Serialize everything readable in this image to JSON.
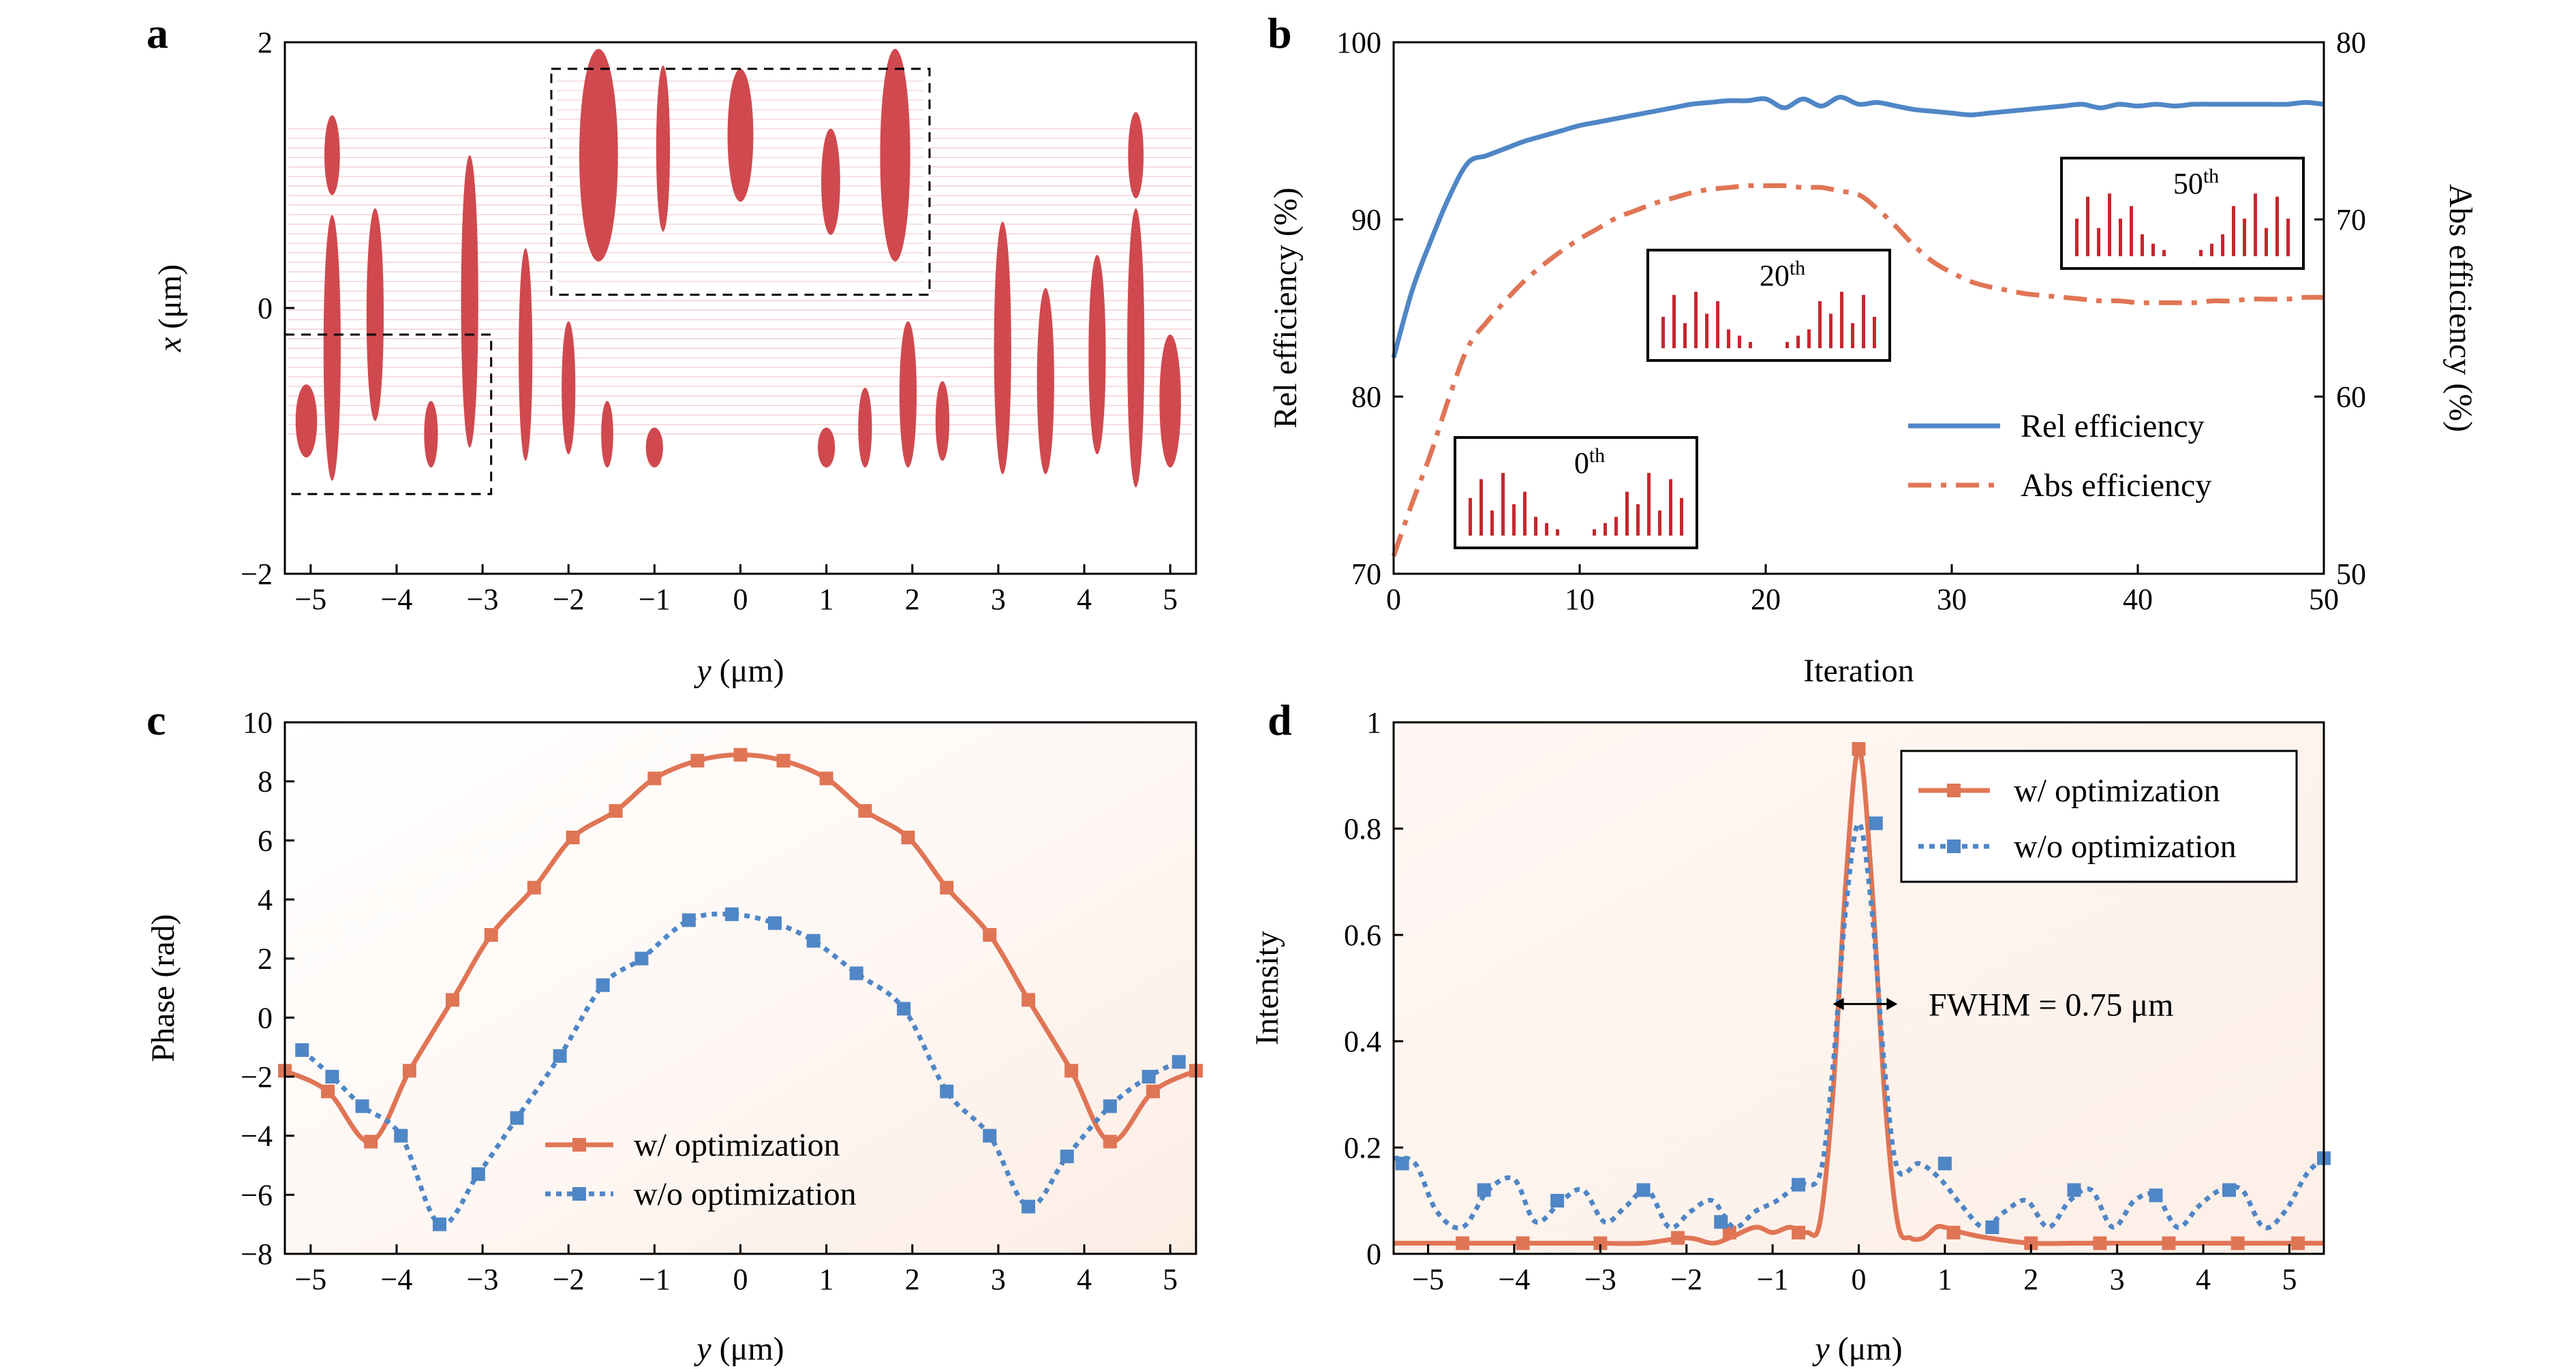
{
  "panels": {
    "a": "a",
    "b": "b",
    "c": "c",
    "d": "d"
  },
  "colors": {
    "orange": "#E07555",
    "blue": "#4F86C6",
    "shape": "#D0494F",
    "stripe": "#F2C4C4",
    "bg_peach": "#FDF3EE",
    "frame": "#000000"
  },
  "chart_data": [
    {
      "panel": "a",
      "type": "scatter",
      "title": "",
      "xlabel": "y (μm)",
      "ylabel": "x (μm)",
      "xlim": [
        -5.3,
        5.3
      ],
      "ylim": [
        -2,
        2
      ],
      "xticks": [
        "−5",
        "−4",
        "−3",
        "−2",
        "−1",
        "0",
        "1",
        "2",
        "3",
        "4",
        "5"
      ],
      "yticks": [
        "−2",
        "0",
        "2"
      ],
      "ellipses": [
        {
          "y": -4.75,
          "x": 1.15,
          "w": 0.18,
          "h": 0.6
        },
        {
          "y": -4.75,
          "x": -0.3,
          "w": 0.2,
          "h": 2.0
        },
        {
          "y": -5.05,
          "x": -0.85,
          "w": 0.25,
          "h": 0.55
        },
        {
          "y": -4.25,
          "x": -0.05,
          "w": 0.2,
          "h": 1.6
        },
        {
          "y": -3.6,
          "x": -0.95,
          "w": 0.16,
          "h": 0.5
        },
        {
          "y": -3.15,
          "x": 0.05,
          "w": 0.2,
          "h": 2.2
        },
        {
          "y": -2.5,
          "x": -0.35,
          "w": 0.16,
          "h": 1.6
        },
        {
          "y": -2.0,
          "x": -0.6,
          "w": 0.16,
          "h": 1.0
        },
        {
          "y": -1.55,
          "x": -0.95,
          "w": 0.14,
          "h": 0.5
        },
        {
          "y": -1.0,
          "x": -1.05,
          "w": 0.2,
          "h": 0.3
        },
        {
          "y": 1.0,
          "x": -1.05,
          "w": 0.2,
          "h": 0.3
        },
        {
          "y": 1.45,
          "x": -0.9,
          "w": 0.16,
          "h": 0.6
        },
        {
          "y": 1.95,
          "x": -0.65,
          "w": 0.2,
          "h": 1.1
        },
        {
          "y": 2.35,
          "x": -0.85,
          "w": 0.16,
          "h": 0.6
        },
        {
          "y": 3.05,
          "x": -0.3,
          "w": 0.2,
          "h": 1.9
        },
        {
          "y": 3.55,
          "x": -0.55,
          "w": 0.2,
          "h": 1.4
        },
        {
          "y": 4.15,
          "x": -0.35,
          "w": 0.2,
          "h": 1.5
        },
        {
          "y": 4.6,
          "x": -0.3,
          "w": 0.2,
          "h": 2.1
        },
        {
          "y": 4.6,
          "x": 1.15,
          "w": 0.18,
          "h": 0.65
        },
        {
          "y": 5.0,
          "x": -0.7,
          "w": 0.25,
          "h": 1.0
        }
      ],
      "inset_shapes": [
        {
          "y": -1.65,
          "x": 1.15,
          "w": 0.45,
          "h": 1.6
        },
        {
          "y": -0.9,
          "x": 1.2,
          "w": 0.16,
          "h": 1.25
        },
        {
          "y": 0.0,
          "x": 1.3,
          "w": 0.3,
          "h": 1.0
        },
        {
          "y": 1.05,
          "x": 0.95,
          "w": 0.22,
          "h": 0.8
        },
        {
          "y": 1.8,
          "x": 1.15,
          "w": 0.35,
          "h": 1.6
        }
      ],
      "boxes": [
        {
          "y0": -2.2,
          "y1": 2.2,
          "x0": 0.1,
          "x1": 1.8
        },
        {
          "y0": -5.3,
          "y1": -2.9,
          "x0": -1.4,
          "x1": -0.2
        }
      ]
    },
    {
      "panel": "b",
      "type": "line",
      "title": "",
      "xlabel": "Iteration",
      "ylabel": "Rel efficiency (%)",
      "ylabel_right": "Abs efficiency (%)",
      "xlim": [
        0,
        50
      ],
      "ylim": [
        70,
        100
      ],
      "ylim_right": [
        50,
        80
      ],
      "xticks": [
        "0",
        "10",
        "20",
        "30",
        "40",
        "50"
      ],
      "yticks": [
        "70",
        "80",
        "90",
        "100"
      ],
      "yticks_right": [
        "50",
        "60",
        "70",
        "80"
      ],
      "series": [
        {
          "name": "Rel efficiency",
          "axis": "left",
          "style": "solid",
          "x": [
            0,
            1,
            2,
            3,
            4,
            5,
            6,
            7,
            8,
            9,
            10,
            11,
            12,
            13,
            14,
            15,
            16,
            17,
            18,
            19,
            20,
            21,
            22,
            23,
            24,
            25,
            26,
            27,
            28,
            29,
            30,
            31,
            32,
            33,
            34,
            35,
            36,
            37,
            38,
            39,
            40,
            41,
            42,
            43,
            44,
            45,
            46,
            47,
            48,
            49,
            50
          ],
          "values": [
            82.2,
            86.0,
            88.8,
            91.3,
            93.2,
            93.6,
            94.0,
            94.4,
            94.7,
            95.0,
            95.3,
            95.5,
            95.7,
            95.9,
            96.1,
            96.3,
            96.5,
            96.6,
            96.7,
            96.7,
            96.8,
            96.3,
            96.8,
            96.4,
            96.9,
            96.5,
            96.6,
            96.4,
            96.2,
            96.1,
            96.0,
            95.9,
            96.0,
            96.1,
            96.2,
            96.3,
            96.4,
            96.5,
            96.3,
            96.5,
            96.4,
            96.5,
            96.4,
            96.5,
            96.5,
            96.5,
            96.5,
            96.5,
            96.5,
            96.6,
            96.5
          ]
        },
        {
          "name": "Abs efficiency",
          "axis": "right",
          "style": "dashdot",
          "x": [
            0,
            1,
            2,
            3,
            4,
            5,
            6,
            7,
            8,
            9,
            10,
            11,
            12,
            13,
            14,
            15,
            16,
            17,
            18,
            19,
            20,
            21,
            22,
            23,
            24,
            25,
            26,
            27,
            28,
            29,
            30,
            31,
            32,
            33,
            34,
            35,
            36,
            37,
            38,
            39,
            40,
            41,
            42,
            43,
            44,
            45,
            46,
            47,
            48,
            49,
            50
          ],
          "values": [
            51.0,
            54.0,
            56.8,
            60.0,
            62.8,
            64.2,
            65.4,
            66.5,
            67.4,
            68.2,
            68.9,
            69.5,
            70.1,
            70.5,
            70.9,
            71.2,
            71.5,
            71.7,
            71.8,
            71.9,
            71.9,
            71.9,
            71.8,
            71.8,
            71.6,
            71.4,
            70.6,
            69.6,
            68.5,
            67.6,
            67.0,
            66.5,
            66.2,
            66.0,
            65.8,
            65.7,
            65.6,
            65.5,
            65.4,
            65.4,
            65.3,
            65.3,
            65.3,
            65.3,
            65.4,
            65.4,
            65.5,
            65.5,
            65.5,
            65.6,
            65.6
          ]
        }
      ],
      "insets": [
        {
          "label_base": "0",
          "label_sup": "th",
          "at_iter": 0
        },
        {
          "label_base": "20",
          "label_sup": "th",
          "at_iter": 20
        },
        {
          "label_base": "50",
          "label_sup": "th",
          "at_iter": 50
        }
      ],
      "legend_position": "center-right"
    },
    {
      "panel": "c",
      "type": "line",
      "title": "",
      "xlabel": "y (μm)",
      "ylabel": "Phase (rad)",
      "xlim": [
        -5.3,
        5.3
      ],
      "ylim": [
        -8,
        10
      ],
      "xticks": [
        "−5",
        "−4",
        "−3",
        "−2",
        "−1",
        "0",
        "1",
        "2",
        "3",
        "4",
        "5"
      ],
      "yticks": [
        "−8",
        "−6",
        "−4",
        "−2",
        "0",
        "2",
        "4",
        "6",
        "8",
        "10"
      ],
      "series": [
        {
          "name": "w/ optimization",
          "style": "solid",
          "marker": "square",
          "x": [
            -5.3,
            -4.8,
            -4.3,
            -3.85,
            -3.35,
            -2.9,
            -2.4,
            -1.95,
            -1.45,
            -1.0,
            -0.5,
            0.0,
            0.5,
            1.0,
            1.45,
            1.95,
            2.4,
            2.9,
            3.35,
            3.85,
            4.3,
            4.8,
            5.3
          ],
          "values": [
            -1.8,
            -2.5,
            -4.2,
            -1.8,
            0.6,
            2.8,
            4.4,
            6.1,
            7.0,
            8.1,
            8.7,
            8.9,
            8.7,
            8.1,
            7.0,
            6.1,
            4.4,
            2.8,
            0.6,
            -1.8,
            -4.2,
            -2.5,
            -1.8
          ]
        },
        {
          "name": "w/o optimization",
          "style": "dotted",
          "marker": "square",
          "x": [
            -5.1,
            -4.75,
            -4.4,
            -3.95,
            -3.5,
            -3.05,
            -2.6,
            -2.1,
            -1.6,
            -1.15,
            -0.6,
            -0.1,
            0.4,
            0.85,
            1.35,
            1.9,
            2.4,
            2.9,
            3.35,
            3.8,
            4.3,
            4.75,
            5.1
          ],
          "values": [
            -1.1,
            -2.0,
            -3.0,
            -4.0,
            -7.0,
            -5.3,
            -3.4,
            -1.3,
            1.1,
            2.0,
            3.3,
            3.5,
            3.2,
            2.6,
            1.5,
            0.3,
            -2.5,
            -4.0,
            -6.4,
            -4.7,
            -3.0,
            -2.0,
            -1.5
          ]
        }
      ],
      "legend_position": "bottom-center"
    },
    {
      "panel": "d",
      "type": "line",
      "title": "",
      "xlabel": "y (μm)",
      "ylabel": "Intensity",
      "xlim": [
        -5.4,
        5.4
      ],
      "ylim": [
        0,
        1
      ],
      "xticks": [
        "−5",
        "−4",
        "−3",
        "−2",
        "−1",
        "0",
        "1",
        "2",
        "3",
        "4",
        "5"
      ],
      "yticks": [
        "0",
        "0.2",
        "0.4",
        "0.6",
        "0.8",
        "1"
      ],
      "series": [
        {
          "name": "w/ optimization",
          "style": "solid",
          "marker": "square",
          "x": [
            -5.4,
            -5.0,
            -4.5,
            -4.0,
            -3.5,
            -3.0,
            -2.5,
            -2.0,
            -1.7,
            -1.5,
            -1.2,
            -1.0,
            -0.8,
            -0.6,
            -0.45,
            -0.3,
            -0.15,
            0.0,
            0.15,
            0.3,
            0.45,
            0.6,
            0.75,
            0.9,
            1.0,
            1.2,
            1.5,
            2.0,
            2.5,
            3.0,
            3.5,
            4.0,
            4.5,
            5.0,
            5.4
          ],
          "values": [
            0.02,
            0.02,
            0.02,
            0.02,
            0.02,
            0.02,
            0.02,
            0.03,
            0.02,
            0.03,
            0.05,
            0.04,
            0.05,
            0.04,
            0.06,
            0.3,
            0.7,
            0.95,
            0.7,
            0.3,
            0.06,
            0.03,
            0.03,
            0.05,
            0.05,
            0.04,
            0.03,
            0.02,
            0.02,
            0.02,
            0.02,
            0.02,
            0.02,
            0.02,
            0.02
          ],
          "markers_x": [
            -4.6,
            -3.9,
            -3.0,
            -2.1,
            -1.5,
            -0.7,
            0.0,
            1.1,
            2.0,
            2.8,
            3.6,
            4.4,
            5.1
          ],
          "markers_y": [
            0.02,
            0.02,
            0.02,
            0.03,
            0.04,
            0.04,
            0.95,
            0.04,
            0.02,
            0.02,
            0.02,
            0.02,
            0.02
          ]
        },
        {
          "name": "w/o optimization",
          "style": "dotted",
          "marker": "square",
          "x": [
            -5.4,
            -5.15,
            -4.9,
            -4.6,
            -4.3,
            -4.0,
            -3.75,
            -3.45,
            -3.2,
            -2.95,
            -2.7,
            -2.45,
            -2.2,
            -1.95,
            -1.7,
            -1.45,
            -1.2,
            -0.95,
            -0.7,
            -0.45,
            -0.3,
            -0.15,
            0.0,
            0.15,
            0.3,
            0.45,
            0.7,
            0.95,
            1.2,
            1.45,
            1.7,
            1.95,
            2.2,
            2.45,
            2.7,
            2.95,
            3.2,
            3.45,
            3.7,
            3.95,
            4.2,
            4.45,
            4.7,
            4.95,
            5.2,
            5.4
          ],
          "values": [
            0.18,
            0.17,
            0.08,
            0.05,
            0.12,
            0.14,
            0.06,
            0.1,
            0.12,
            0.06,
            0.09,
            0.12,
            0.05,
            0.08,
            0.1,
            0.05,
            0.08,
            0.1,
            0.13,
            0.15,
            0.35,
            0.65,
            0.81,
            0.65,
            0.35,
            0.16,
            0.17,
            0.14,
            0.09,
            0.05,
            0.08,
            0.1,
            0.05,
            0.1,
            0.12,
            0.05,
            0.1,
            0.11,
            0.05,
            0.09,
            0.12,
            0.12,
            0.05,
            0.08,
            0.15,
            0.18
          ],
          "markers_x": [
            -5.3,
            -4.35,
            -3.5,
            -2.5,
            -1.6,
            -0.7,
            0.2,
            1.0,
            1.55,
            2.5,
            3.45,
            4.3,
            5.4
          ],
          "markers_y": [
            0.17,
            0.12,
            0.1,
            0.12,
            0.06,
            0.13,
            0.81,
            0.17,
            0.05,
            0.12,
            0.11,
            0.12,
            0.18
          ]
        }
      ],
      "annotation": {
        "text": "FWHM = 0.75 μm",
        "arrow_from": -0.3,
        "arrow_to": 0.45,
        "at": 0.47
      },
      "legend_position": "top-right"
    }
  ]
}
